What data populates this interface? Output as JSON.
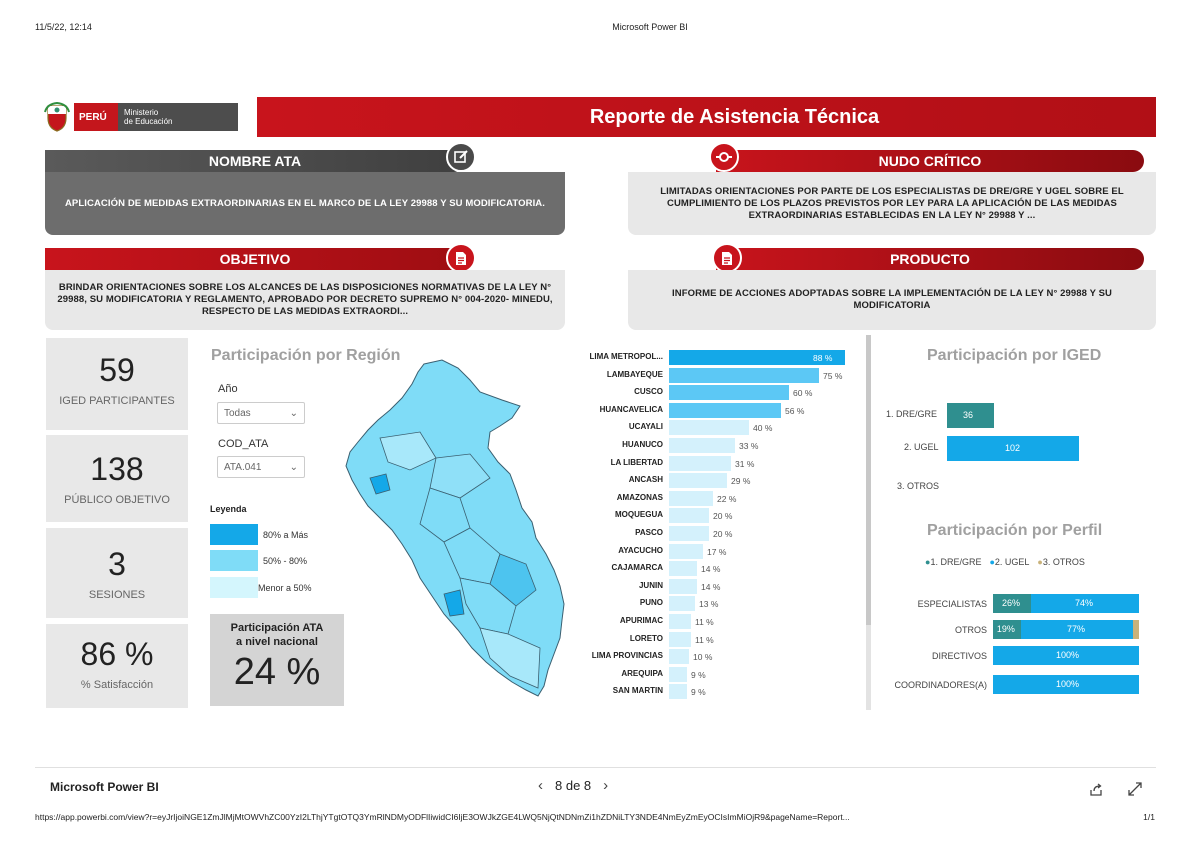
{
  "print": {
    "date": "11/5/22, 12:14",
    "title": "Microsoft Power BI"
  },
  "header": {
    "peru": "PERÚ",
    "ministry_line1": "Ministerio",
    "ministry_line2": "de Educación",
    "title": "Reporte de Asistencia Técnica"
  },
  "cards": {
    "nombre_ata": {
      "title": "NOMBRE ATA",
      "text": "APLICACIÓN DE MEDIDAS EXTRAORDINARIAS EN EL MARCO DE LA LEY 29988 Y SU MODIFICATORIA."
    },
    "nudo_critico": {
      "title": "NUDO CRÍTICO",
      "text": "LIMITADAS ORIENTACIONES POR PARTE DE LOS ESPECIALISTAS DE DRE/GRE Y UGEL SOBRE EL CUMPLIMIENTO DE LOS PLAZOS PREVISTOS POR LEY PARA LA APLICACIÓN DE LAS MEDIDAS EXTRAORDINARIAS ESTABLECIDAS EN LA LEY N° 29988 Y ..."
    },
    "objetivo": {
      "title": "OBJETIVO",
      "text": "BRINDAR ORIENTACIONES SOBRE LOS ALCANCES DE LAS DISPOSICIONES NORMATIVAS DE LA LEY N° 29988, SU MODIFICATORIA Y REGLAMENTO, APROBADO POR DECRETO SUPREMO N° 004-2020- MINEDU, RESPECTO DE LAS MEDIDAS EXTRAORDI..."
    },
    "producto": {
      "title": "PRODUCTO",
      "text": "INFORME DE ACCIONES ADOPTADAS SOBRE LA IMPLEMENTACIÓN DE LA LEY N° 29988 Y SU MODIFICATORIA"
    }
  },
  "kpis": [
    {
      "value": "59",
      "label": "IGED PARTICIPANTES"
    },
    {
      "value": "138",
      "label": "PÚBLICO OBJETIVO"
    },
    {
      "value": "3",
      "label": "SESIONES"
    },
    {
      "value": "86 %",
      "label": "% Satisfacción"
    }
  ],
  "region": {
    "title": "Participación por Región",
    "filter_year_label": "Año",
    "filter_year_value": "Todas",
    "filter_code_label": "COD_ATA",
    "filter_code_value": "ATA.041",
    "legend_title": "Leyenda",
    "legend": [
      {
        "label": "80% a Más",
        "color": "#14a8e8"
      },
      {
        "label": "50% - 80%",
        "color": "#7fdcf7"
      },
      {
        "label": "Menor a 50%",
        "color": "#d4f6fd"
      }
    ],
    "national_label_1": "Participación ATA",
    "national_label_2": "a nivel nacional",
    "national_value": "24 %"
  },
  "chart_data": {
    "type": "bar",
    "categories": [
      "LIMA METROPOL...",
      "LAMBAYEQUE",
      "CUSCO",
      "HUANCAVELICA",
      "UCAYALI",
      "HUANUCO",
      "LA LIBERTAD",
      "ANCASH",
      "AMAZONAS",
      "MOQUEGUA",
      "PASCO",
      "AYACUCHO",
      "CAJAMARCA",
      "JUNIN",
      "PUNO",
      "APURIMAC",
      "LORETO",
      "LIMA PROVINCIAS",
      "AREQUIPA",
      "SAN MARTIN"
    ],
    "values": [
      88,
      75,
      60,
      56,
      40,
      33,
      31,
      29,
      22,
      20,
      20,
      17,
      14,
      14,
      13,
      11,
      11,
      10,
      9,
      9
    ],
    "value_labels": [
      "88 %",
      "75 %",
      "60 %",
      "56 %",
      "40 %",
      "33 %",
      "31 %",
      "29 %",
      "22 %",
      "20 %",
      "20 %",
      "17 %",
      "14 %",
      "14 %",
      "13 %",
      "11 %",
      "11 %",
      "10 %",
      "9 %",
      "9 %"
    ],
    "colors": {
      "high": "#14a8e8",
      "mid": "#5cc8f5",
      "low": "#d4f1fc"
    },
    "xlim": [
      0,
      100
    ]
  },
  "iged": {
    "title": "Participación por IGED",
    "rows": [
      {
        "label": "1. DRE/GRE",
        "value": 36,
        "value_label": "36",
        "color": "#2f8f8f"
      },
      {
        "label": "2. UGEL",
        "value": 102,
        "value_label": "102",
        "color": "#14a8e8"
      },
      {
        "label": "3. OTROS",
        "value": 0,
        "value_label": "",
        "color": "#c9b27a"
      }
    ],
    "max": 102
  },
  "perfil": {
    "title": "Participación por Perfil",
    "legend": [
      {
        "label": "1. DRE/GRE",
        "color": "#2f8f8f"
      },
      {
        "label": "2. UGEL",
        "color": "#14a8e8"
      },
      {
        "label": "3. OTROS",
        "color": "#c9b27a"
      }
    ],
    "rows": [
      {
        "label": "ESPECIALISTAS",
        "parts": [
          26,
          74,
          0
        ],
        "labels": [
          "26%",
          "74%",
          ""
        ]
      },
      {
        "label": "OTROS",
        "parts": [
          19,
          77,
          4
        ],
        "labels": [
          "19%",
          "77%",
          ""
        ]
      },
      {
        "label": "DIRECTIVOS",
        "parts": [
          0,
          100,
          0
        ],
        "labels": [
          "",
          "100%",
          ""
        ]
      },
      {
        "label": "COORDINADORES(A)",
        "parts": [
          0,
          100,
          0
        ],
        "labels": [
          "",
          "100%",
          ""
        ]
      }
    ]
  },
  "footer": {
    "brand": "Microsoft Power BI",
    "page": "8 de 8",
    "url": "https://app.powerbi.com/view?r=eyJrIjoiNGE1ZmJlMjMtOWVhZC00YzI2LThjYTgtOTQ3YmRlNDMyODFlIiwidCI6IjE3OWJkZGE4LWQ5NjQtNDNmZi1hZDNiLTY3NDE4NmEyZmEyOCIsImMiOjR9&pageName=Report...",
    "page_count": "1/1"
  }
}
